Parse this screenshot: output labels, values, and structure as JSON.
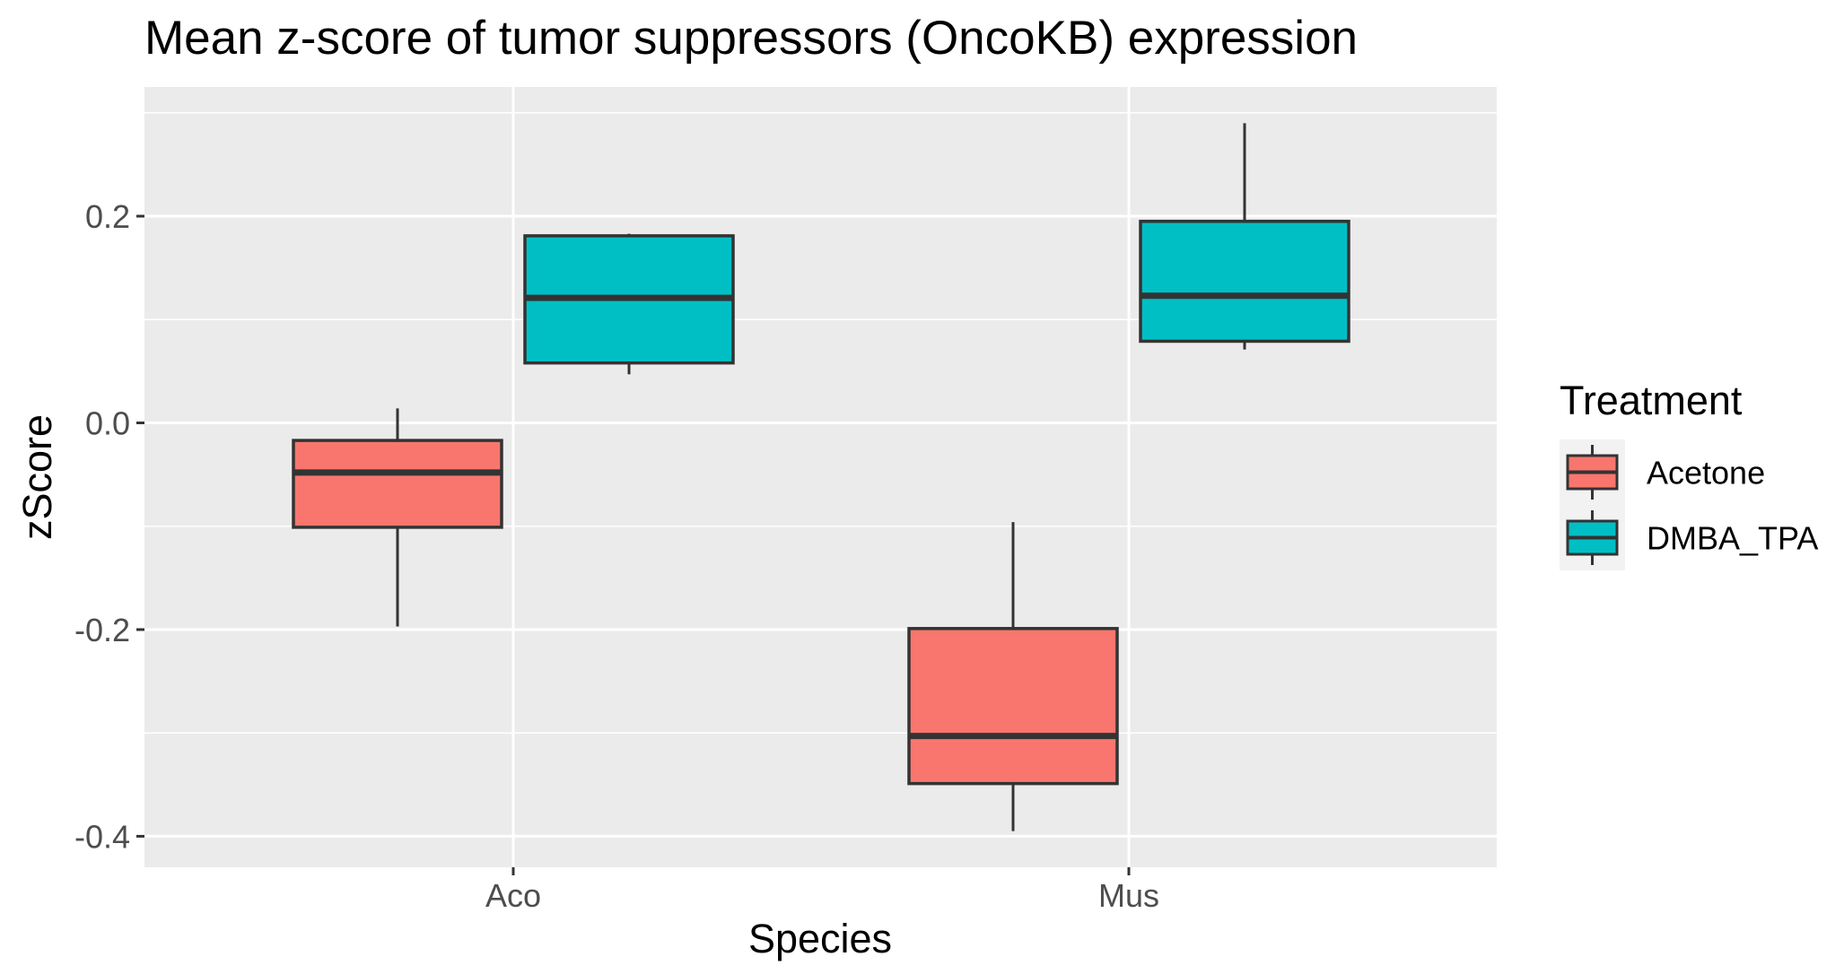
{
  "chart_data": {
    "type": "boxplot",
    "title": "Mean z-score of tumor suppressors (OncoKB) expression",
    "xlabel": "Species",
    "ylabel": "zScore",
    "categories": [
      "Aco",
      "Mus"
    ],
    "ylim": [
      -0.43,
      0.325
    ],
    "yticks": [
      {
        "value": 0.2,
        "label": "0.2"
      },
      {
        "value": 0.0,
        "label": "0.0"
      },
      {
        "value": -0.2,
        "label": "-0.2"
      },
      {
        "value": -0.4,
        "label": "-0.4"
      }
    ],
    "grid": true,
    "legend": {
      "title": "Treatment",
      "position": "right"
    },
    "series": [
      {
        "name": "Acetone",
        "color": "#F8766D",
        "boxes": [
          {
            "category": "Aco",
            "min": -0.197,
            "q1": -0.101,
            "median": -0.048,
            "q3": -0.017,
            "max": 0.014
          },
          {
            "category": "Mus",
            "min": -0.395,
            "q1": -0.349,
            "median": -0.303,
            "q3": -0.199,
            "max": -0.096
          }
        ]
      },
      {
        "name": "DMBA_TPA",
        "color": "#00BFC4",
        "boxes": [
          {
            "category": "Aco",
            "min": 0.047,
            "q1": 0.058,
            "median": 0.121,
            "q3": 0.181,
            "max": 0.183
          },
          {
            "category": "Mus",
            "min": 0.071,
            "q1": 0.079,
            "median": 0.123,
            "q3": 0.195,
            "max": 0.29
          }
        ]
      }
    ],
    "colors": {
      "panel_background": "#EBEBEB",
      "grid": "#FFFFFF",
      "box_outline": "#333333",
      "tick_label": "#4D4D4D"
    }
  }
}
